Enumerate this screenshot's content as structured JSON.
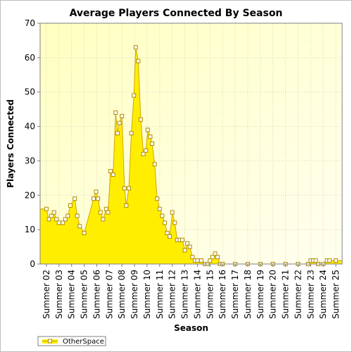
{
  "chart_data": {
    "type": "area",
    "title": "Average Players Connected By Season",
    "xlabel": "Season",
    "ylabel": "Players Connected",
    "ylim": [
      0,
      70
    ],
    "yticks": [
      0,
      10,
      20,
      30,
      40,
      50,
      60,
      70
    ],
    "grid": true,
    "legend_position": "bottom-left",
    "colors": {
      "fill": "#ffee00",
      "line": "#d4a300",
      "marker_fill": "#ffffff",
      "marker_stroke": "#b08a00",
      "plot_bg_top": "#fffff0",
      "plot_bg_bottom": "#ffffc0"
    },
    "categories": [
      "Summer 02",
      "Summer 03",
      "Summer 04",
      "Summer 05",
      "Summer 06",
      "Summer 07",
      "Summer 08",
      "Summer 09",
      "Summer 10",
      "Summer 11",
      "Summer 12",
      "Summer 13",
      "Summer 14",
      "Summer 15",
      "Summer 16",
      "Summer 17",
      "Summer 18",
      "Summer 19",
      "Summer 20",
      "Summer 21",
      "Summer 22",
      "Summer 23",
      "Summer 24",
      "Summer 25"
    ],
    "series": [
      {
        "name": "OtherSpace",
        "points": [
          [
            0.0,
            16
          ],
          [
            0.2,
            13
          ],
          [
            0.4,
            14
          ],
          [
            0.6,
            15
          ],
          [
            0.8,
            13
          ],
          [
            1.0,
            12
          ],
          [
            1.3,
            12
          ],
          [
            1.5,
            13
          ],
          [
            1.7,
            14
          ],
          [
            1.9,
            17
          ],
          [
            2.25,
            19
          ],
          [
            2.45,
            14
          ],
          [
            2.65,
            11
          ],
          [
            3.0,
            9
          ],
          [
            3.75,
            19
          ],
          [
            3.95,
            21
          ],
          [
            4.1,
            19
          ],
          [
            4.3,
            15
          ],
          [
            4.5,
            13
          ],
          [
            4.75,
            16
          ],
          [
            4.9,
            15
          ],
          [
            5.1,
            27
          ],
          [
            5.3,
            26
          ],
          [
            5.5,
            44
          ],
          [
            5.65,
            38
          ],
          [
            5.8,
            41
          ],
          [
            6.0,
            43
          ],
          [
            6.2,
            22
          ],
          [
            6.35,
            17
          ],
          [
            6.55,
            22
          ],
          [
            6.75,
            38
          ],
          [
            6.95,
            49
          ],
          [
            7.1,
            63
          ],
          [
            7.3,
            59
          ],
          [
            7.5,
            42
          ],
          [
            7.7,
            32
          ],
          [
            7.9,
            33
          ],
          [
            8.05,
            39
          ],
          [
            8.25,
            37
          ],
          [
            8.4,
            35
          ],
          [
            8.6,
            29
          ],
          [
            8.8,
            19
          ],
          [
            9.0,
            16
          ],
          [
            9.2,
            14
          ],
          [
            9.4,
            12
          ],
          [
            9.6,
            9
          ],
          [
            9.8,
            8
          ],
          [
            10.0,
            15
          ],
          [
            10.2,
            12
          ],
          [
            10.4,
            7
          ],
          [
            10.6,
            7
          ],
          [
            10.8,
            7
          ],
          [
            11.0,
            4
          ],
          [
            11.2,
            6
          ],
          [
            11.4,
            5
          ],
          [
            11.6,
            2
          ],
          [
            11.8,
            1
          ],
          [
            12.0,
            1
          ],
          [
            12.3,
            1
          ],
          [
            12.6,
            0
          ],
          [
            12.8,
            0
          ],
          [
            13.0,
            1
          ],
          [
            13.2,
            2
          ],
          [
            13.4,
            3
          ],
          [
            13.6,
            2
          ],
          [
            13.8,
            0
          ],
          [
            14.0,
            0
          ],
          [
            15.0,
            0
          ],
          [
            16.0,
            0
          ],
          [
            17.0,
            0
          ],
          [
            18.0,
            0
          ],
          [
            19.0,
            0
          ],
          [
            20.0,
            0
          ],
          [
            20.8,
            0
          ],
          [
            21.0,
            1
          ],
          [
            21.2,
            1
          ],
          [
            21.4,
            1
          ],
          [
            21.6,
            0
          ],
          [
            22.0,
            0
          ],
          [
            22.3,
            1
          ],
          [
            22.5,
            1
          ],
          [
            23.0,
            1
          ]
        ]
      }
    ]
  }
}
